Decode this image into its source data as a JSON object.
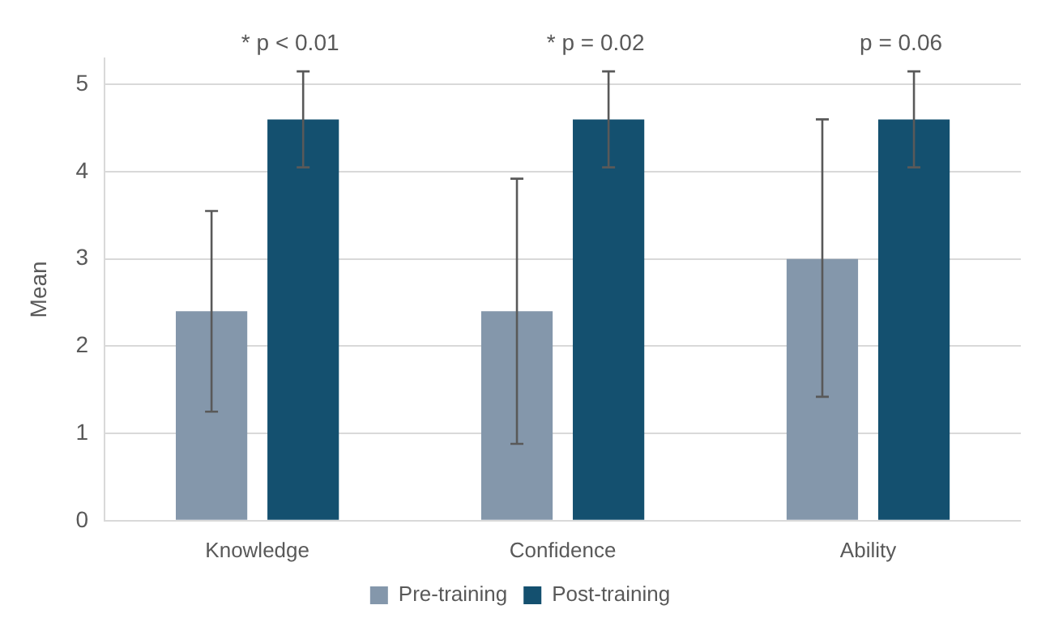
{
  "chart_data": {
    "type": "bar",
    "categories": [
      "Knowledge",
      "Confidence",
      "Ability"
    ],
    "series": [
      {
        "name": "Pre-training",
        "color": "#8497ab",
        "values": [
          2.4,
          2.4,
          3.0
        ],
        "errors": [
          [
            1.25,
            3.55
          ],
          [
            0.88,
            3.92
          ],
          [
            1.42,
            4.6
          ]
        ]
      },
      {
        "name": "Post-training",
        "color": "#14506f",
        "values": [
          4.6,
          4.6,
          4.6
        ],
        "errors": [
          [
            4.05,
            5.15
          ],
          [
            4.05,
            5.15
          ],
          [
            4.05,
            5.15
          ]
        ]
      }
    ],
    "ylabel": "Mean",
    "ylim": [
      0,
      5.3
    ],
    "yticks": [
      0,
      1,
      2,
      3,
      4,
      5
    ],
    "grid": "y",
    "legend": "bottom",
    "annotations": [
      "* p < 0.01",
      "* p = 0.02",
      "p = 0.06"
    ]
  }
}
